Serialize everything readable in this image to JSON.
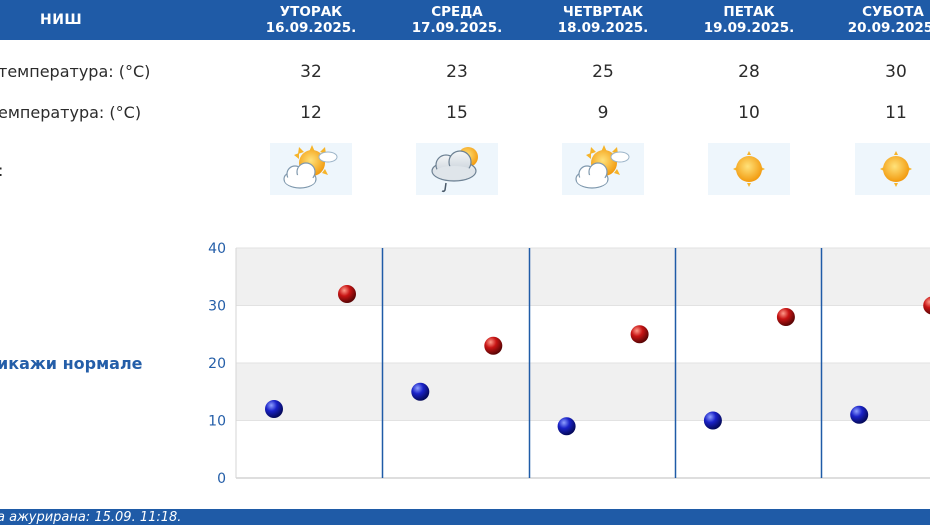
{
  "header": {
    "city": "НИШ",
    "days": [
      {
        "name": "УТОРАК",
        "date": "16.09.2025."
      },
      {
        "name": "СРЕДА",
        "date": "17.09.2025."
      },
      {
        "name": "ЧЕТВРТАК",
        "date": "18.09.2025."
      },
      {
        "name": "ПЕТАК",
        "date": "19.09.2025."
      },
      {
        "name": "СУБОТА",
        "date": "20.09.2025."
      }
    ]
  },
  "rows": {
    "max_label": "температура: (°C)",
    "min_label": "емпература: (°C)",
    "icon_label": ":",
    "max_values": [
      "32",
      "23",
      "25",
      "28",
      "30"
    ],
    "min_values": [
      "12",
      "15",
      "9",
      "10",
      "11"
    ]
  },
  "icons": [
    "partly-cloudy-sun-icon",
    "cloud-sun-rain-icon",
    "partly-cloudy-sun-icon",
    "sun-icon",
    "sun-icon"
  ],
  "normals_link": "икажи нормале",
  "footer": {
    "updated": "а ажурирана:  15.09. 11:18."
  },
  "colors": {
    "header_bg": "#1f5ba7",
    "min_marker": "#1a22c8",
    "max_marker": "#c81414",
    "grid_band": "#f0f0f0",
    "axis_text": "#245ea8"
  },
  "chart_data": {
    "type": "scatter",
    "title": "",
    "xlabel": "",
    "ylabel": "",
    "ylim": [
      0,
      40
    ],
    "yticks": [
      "0",
      "10",
      "20",
      "30",
      "40"
    ],
    "categories": [
      "16.09.2025.",
      "17.09.2025.",
      "18.09.2025.",
      "19.09.2025.",
      "20.09.2025."
    ],
    "series": [
      {
        "key": "min",
        "values": [
          12,
          15,
          9,
          10,
          11
        ]
      },
      {
        "key": "max",
        "values": [
          32,
          23,
          25,
          28,
          30
        ]
      }
    ],
    "grid": true,
    "legend": "none"
  }
}
